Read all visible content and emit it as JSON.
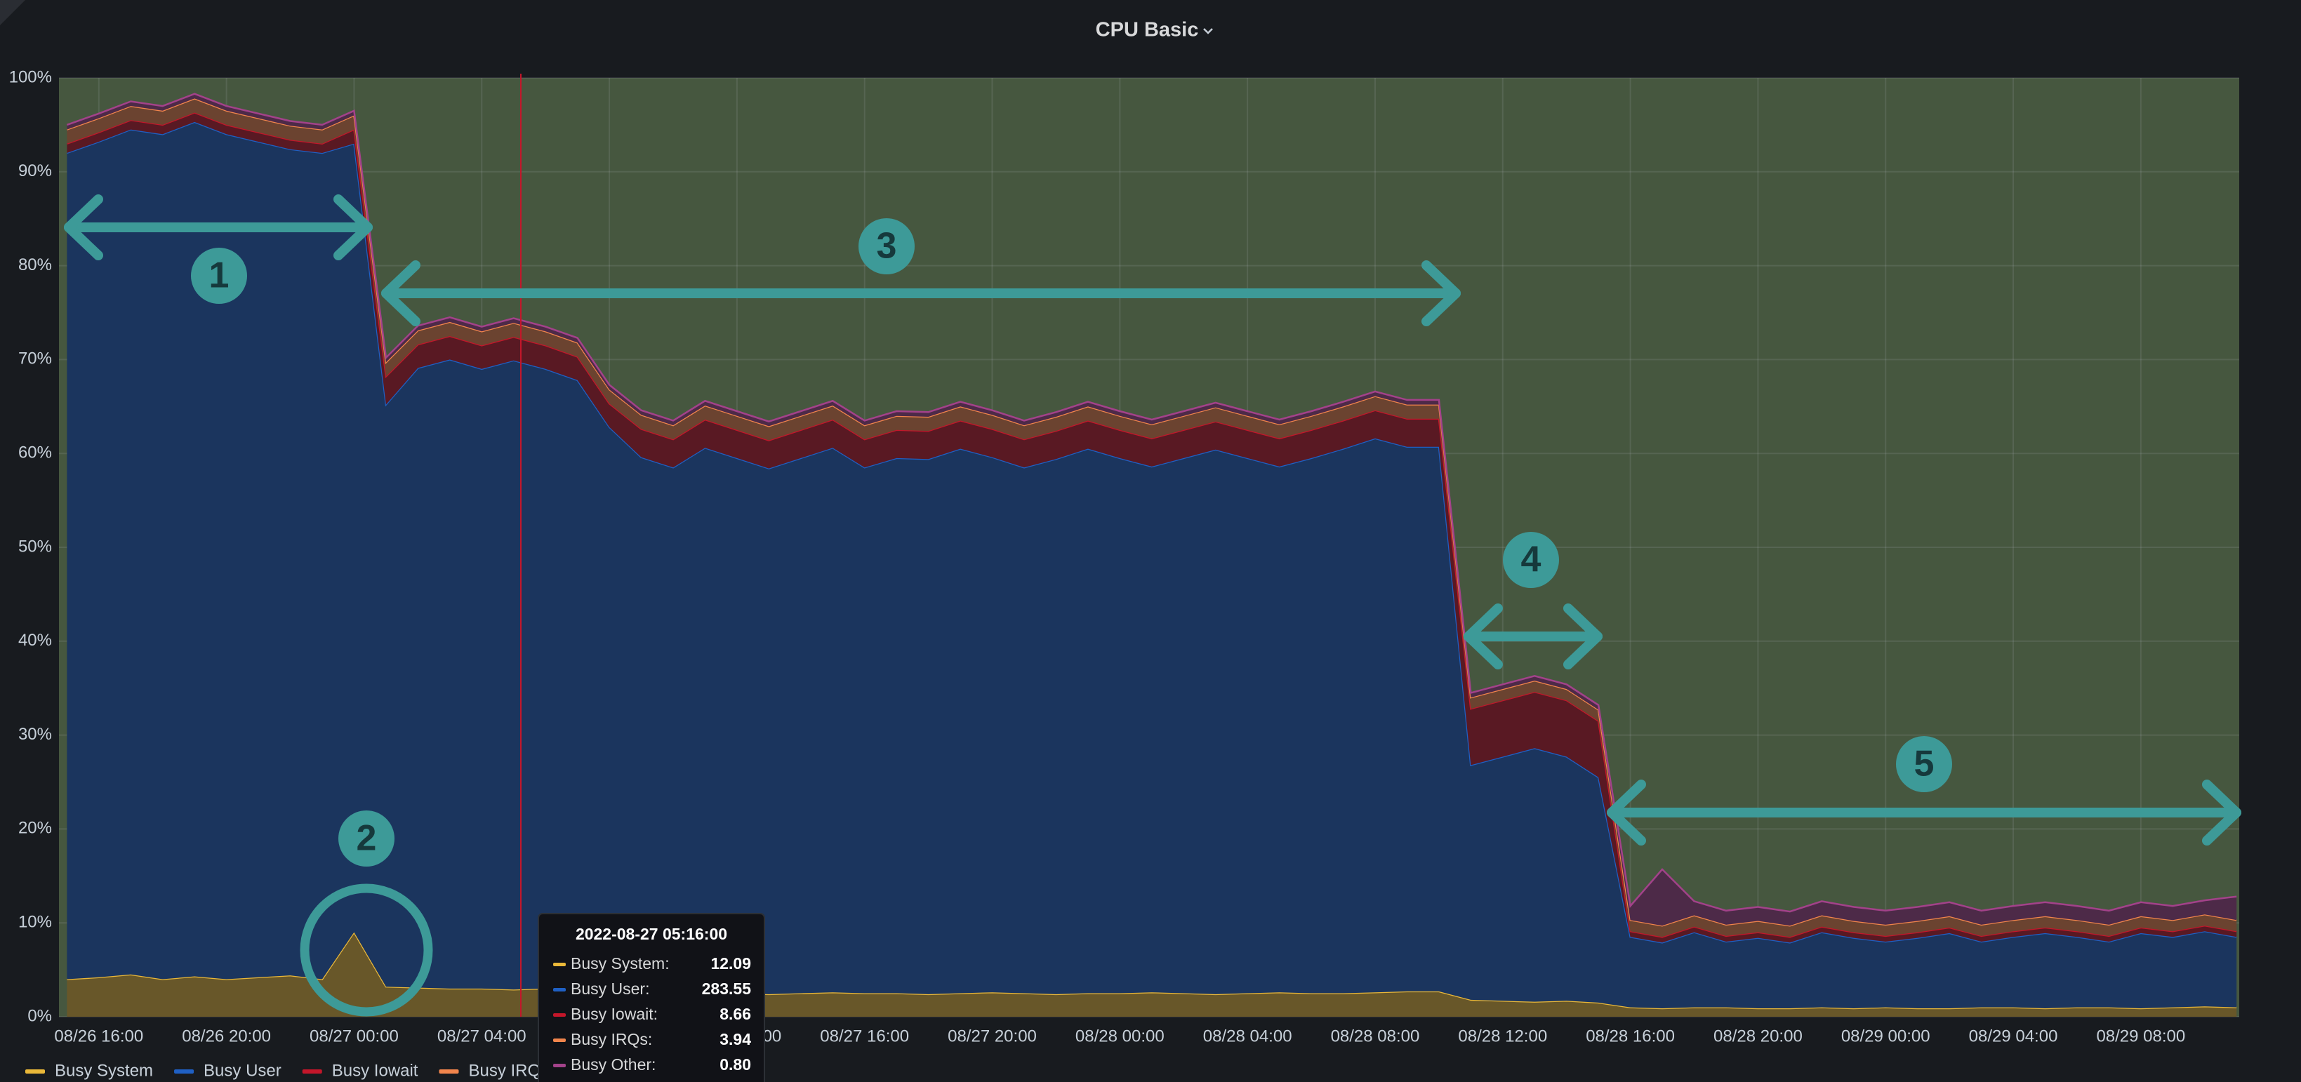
{
  "chart_data": {
    "type": "stacked-area",
    "title": "CPU Basic",
    "x": [
      "08/26 15:00",
      "08/26 16:00",
      "08/26 17:00",
      "08/26 18:00",
      "08/26 19:00",
      "08/26 20:00",
      "08/26 21:00",
      "08/26 22:00",
      "08/26 23:00",
      "08/27 00:00",
      "08/27 01:00",
      "08/27 02:00",
      "08/27 03:00",
      "08/27 04:00",
      "08/27 05:00",
      "08/27 06:00",
      "08/27 07:00",
      "08/27 08:00",
      "08/27 09:00",
      "08/27 10:00",
      "08/27 11:00",
      "08/27 12:00",
      "08/27 13:00",
      "08/27 14:00",
      "08/27 15:00",
      "08/27 16:00",
      "08/27 17:00",
      "08/27 18:00",
      "08/27 19:00",
      "08/27 20:00",
      "08/27 21:00",
      "08/27 22:00",
      "08/27 23:00",
      "08/28 00:00",
      "08/28 01:00",
      "08/28 02:00",
      "08/28 03:00",
      "08/28 04:00",
      "08/28 05:00",
      "08/28 06:00",
      "08/28 07:00",
      "08/28 08:00",
      "08/28 09:00",
      "08/28 10:00",
      "08/28 11:00",
      "08/28 12:00",
      "08/28 13:00",
      "08/28 14:00",
      "08/28 15:00",
      "08/28 16:00",
      "08/28 17:00",
      "08/28 18:00",
      "08/28 19:00",
      "08/28 20:00",
      "08/28 21:00",
      "08/28 22:00",
      "08/28 23:00",
      "08/29 00:00",
      "08/29 01:00",
      "08/29 02:00",
      "08/29 03:00",
      "08/29 04:00",
      "08/29 05:00",
      "08/29 06:00",
      "08/29 07:00",
      "08/29 08:00",
      "08/29 09:00",
      "08/29 10:00",
      "08/29 11:00"
    ],
    "xlim": [
      "08/26 14:45",
      "08/29 11:05"
    ],
    "xticks": [
      "08/26 16:00",
      "08/26 20:00",
      "08/27 00:00",
      "08/27 04:00",
      "08/27 08:00",
      "08/27 12:00",
      "08/27 16:00",
      "08/27 20:00",
      "08/28 00:00",
      "08/28 04:00",
      "08/28 08:00",
      "08/28 12:00",
      "08/28 16:00",
      "08/28 20:00",
      "08/29 00:00",
      "08/29 04:00",
      "08/29 08:00"
    ],
    "ylim": [
      0,
      100
    ],
    "yticks": [
      {
        "value": 0,
        "label": "0%"
      },
      {
        "value": 10,
        "label": "10%"
      },
      {
        "value": 20,
        "label": "20%"
      },
      {
        "value": 30,
        "label": "30%"
      },
      {
        "value": 40,
        "label": "40%"
      },
      {
        "value": 50,
        "label": "50%"
      },
      {
        "value": 60,
        "label": "60%"
      },
      {
        "value": 70,
        "label": "70%"
      },
      {
        "value": 80,
        "label": "80%"
      },
      {
        "value": 90,
        "label": "90%"
      },
      {
        "value": 100,
        "label": "100%"
      }
    ],
    "grid": true,
    "legend": "bottom-left",
    "series": [
      {
        "name": "Busy System",
        "color": "#eab839",
        "values": [
          4,
          4.2,
          4.5,
          4,
          4.3,
          4,
          4.2,
          4.4,
          4,
          9,
          3.2,
          3.1,
          3,
          3,
          2.9,
          3,
          2.8,
          2.8,
          2.6,
          2.5,
          2.6,
          2.5,
          2.4,
          2.5,
          2.6,
          2.5,
          2.5,
          2.4,
          2.5,
          2.6,
          2.5,
          2.4,
          2.5,
          2.5,
          2.6,
          2.5,
          2.4,
          2.5,
          2.6,
          2.5,
          2.5,
          2.6,
          2.7,
          2.7,
          1.8,
          1.7,
          1.6,
          1.7,
          1.5,
          1,
          0.9,
          1,
          1,
          0.9,
          0.9,
          1,
          0.9,
          1,
          0.9,
          0.9,
          1,
          1,
          0.9,
          1,
          1,
          0.9,
          1,
          1.1,
          1
        ]
      },
      {
        "name": "Busy User",
        "color": "#1f60c4",
        "values": [
          88,
          89,
          90,
          90,
          91,
          90,
          89,
          88,
          88,
          84,
          62,
          66,
          67,
          66,
          67,
          66,
          65,
          60,
          57,
          56,
          58,
          57,
          56,
          57,
          58,
          56,
          57,
          57,
          58,
          57,
          56,
          57,
          58,
          57,
          56,
          57,
          58,
          57,
          56,
          57,
          58,
          59,
          58,
          58,
          25,
          26,
          27,
          26,
          24,
          7.5,
          7,
          8,
          7,
          7.5,
          7,
          8,
          7.5,
          7,
          7.5,
          8,
          7,
          7.5,
          8,
          7.5,
          7,
          8,
          7.5,
          8,
          7.5
        ]
      },
      {
        "name": "Busy Iowait",
        "color": "#c4162a",
        "values": [
          1,
          1,
          1,
          1,
          1,
          1,
          1,
          1,
          1,
          1.5,
          3,
          2.5,
          2.5,
          2.5,
          2.5,
          2.5,
          2.5,
          2.5,
          3,
          3,
          3,
          3,
          3,
          3,
          3,
          3,
          3,
          3,
          3,
          3,
          3,
          3,
          3,
          3,
          3,
          3,
          3,
          3,
          3,
          3,
          3,
          3,
          3,
          3,
          6,
          6,
          6,
          6,
          6,
          0.6,
          0.6,
          0.6,
          0.6,
          0.6,
          0.6,
          0.6,
          0.6,
          0.6,
          0.6,
          0.6,
          0.6,
          0.6,
          0.6,
          0.6,
          0.6,
          0.6,
          0.6,
          0.6,
          0.6
        ]
      },
      {
        "name": "Busy IRQs",
        "color": "#f2854c",
        "values": [
          1.5,
          1.5,
          1.5,
          1.5,
          1.5,
          1.5,
          1.5,
          1.5,
          1.5,
          1.5,
          1.5,
          1.5,
          1.5,
          1.5,
          1.5,
          1.5,
          1.5,
          1.5,
          1.5,
          1.5,
          1.5,
          1.5,
          1.5,
          1.5,
          1.5,
          1.5,
          1.5,
          1.5,
          1.5,
          1.5,
          1.5,
          1.5,
          1.5,
          1.5,
          1.5,
          1.5,
          1.5,
          1.5,
          1.5,
          1.5,
          1.5,
          1.5,
          1.5,
          1.5,
          1.2,
          1.2,
          1.2,
          1.2,
          1.2,
          1.2,
          1.2,
          1.2,
          1.2,
          1.2,
          1.2,
          1.2,
          1.2,
          1.2,
          1.2,
          1.2,
          1.2,
          1.2,
          1.2,
          1.2,
          1.2,
          1.2,
          1.2,
          1.2,
          1.2
        ]
      },
      {
        "name": "Busy Other",
        "color": "#a3428a",
        "values": [
          0.5,
          0.5,
          0.5,
          0.5,
          0.5,
          0.5,
          0.5,
          0.5,
          0.5,
          0.5,
          0.5,
          0.5,
          0.5,
          0.5,
          0.5,
          0.5,
          0.5,
          0.5,
          0.5,
          0.5,
          0.5,
          0.5,
          0.5,
          0.5,
          0.5,
          0.5,
          0.5,
          0.5,
          0.5,
          0.5,
          0.5,
          0.5,
          0.5,
          0.5,
          0.5,
          0.5,
          0.5,
          0.5,
          0.5,
          0.5,
          0.5,
          0.5,
          0.5,
          0.5,
          0.5,
          0.5,
          0.5,
          0.5,
          0.5,
          1.5,
          6,
          1.5,
          1.5,
          1.5,
          1.5,
          1.5,
          1.5,
          1.5,
          1.5,
          1.5,
          1.5,
          1.5,
          1.5,
          1.5,
          1.5,
          1.5,
          1.5,
          1.5,
          2.5
        ]
      }
    ],
    "legend_entries": 4,
    "tooltip": {
      "title": "2022-08-27 05:16:00",
      "names": [
        "Busy System:",
        "Busy User:",
        "Busy Iowait:",
        "Busy IRQs:",
        "Busy Other:"
      ],
      "values": [
        12.09,
        283.55,
        8.66,
        3.94,
        0.8
      ],
      "value_labels": [
        "12.09",
        "283.55",
        "8.66",
        "3.94",
        "0.80"
      ]
    },
    "annotations": [
      "1",
      "2",
      "3",
      "4",
      "5"
    ]
  }
}
